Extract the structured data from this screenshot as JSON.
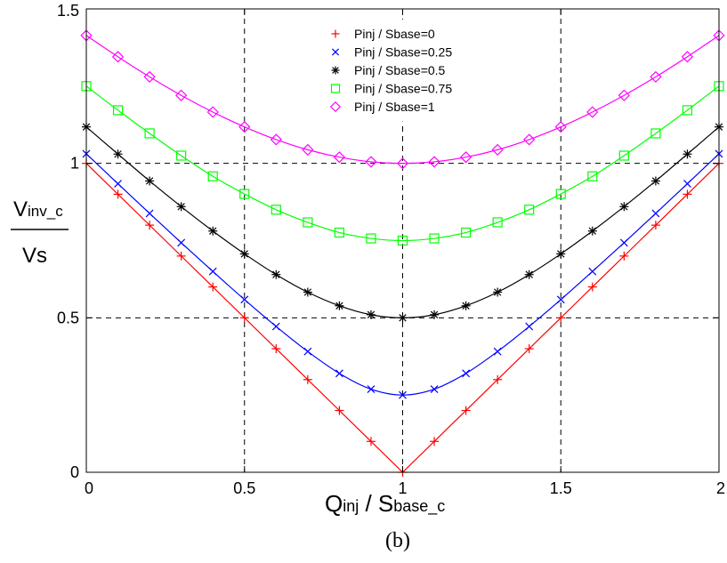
{
  "chart_data": {
    "type": "line",
    "xlabel": {
      "main": "Q",
      "main_sub": "inj",
      "sep": " / ",
      "denom": "S",
      "denom_sub": "base_c"
    },
    "ylabel": {
      "numerator_main": "V",
      "numerator_sub": "inv_c",
      "denominator": "Vs"
    },
    "caption": "(b)",
    "xlim": [
      0,
      2
    ],
    "ylim": [
      0,
      1.5
    ],
    "x_ticks": [
      "0",
      "0.5",
      "1",
      "1.5",
      "2"
    ],
    "y_ticks": [
      "0",
      "0.5",
      "1",
      "1.5"
    ],
    "grid": true,
    "legend_position": "top-center",
    "marker_x": [
      0,
      0.1,
      0.2,
      0.3,
      0.4,
      0.5,
      0.6,
      0.7,
      0.8,
      0.9,
      1.0,
      1.1,
      1.2,
      1.3,
      1.4,
      1.5,
      1.6,
      1.7,
      1.8,
      1.9,
      2.0
    ],
    "series": [
      {
        "name": "Pinj / Sbase=0",
        "color": "#ff0000",
        "marker": "plus",
        "values": [
          1.0,
          0.9,
          0.8,
          0.7,
          0.6,
          0.5,
          0.4,
          0.3,
          0.2,
          0.1,
          0.0,
          0.1,
          0.2,
          0.3,
          0.4,
          0.5,
          0.6,
          0.7,
          0.8,
          0.9,
          1.0
        ]
      },
      {
        "name": "Pinj / Sbase=0.25",
        "color": "#0000ff",
        "marker": "x",
        "values": [
          1.031,
          0.934,
          0.838,
          0.743,
          0.65,
          0.559,
          0.472,
          0.391,
          0.32,
          0.269,
          0.25,
          0.269,
          0.32,
          0.391,
          0.472,
          0.559,
          0.65,
          0.743,
          0.838,
          0.934,
          1.031
        ]
      },
      {
        "name": "Pinj / Sbase=0.5",
        "color": "#000000",
        "marker": "star",
        "values": [
          1.118,
          1.03,
          0.943,
          0.86,
          0.781,
          0.707,
          0.64,
          0.583,
          0.539,
          0.51,
          0.5,
          0.51,
          0.539,
          0.583,
          0.64,
          0.707,
          0.781,
          0.86,
          0.943,
          1.03,
          1.118
        ]
      },
      {
        "name": "Pinj / Sbase=0.75",
        "color": "#00ff00",
        "marker": "square",
        "values": [
          1.25,
          1.172,
          1.097,
          1.025,
          0.958,
          0.901,
          0.85,
          0.809,
          0.776,
          0.757,
          0.75,
          0.757,
          0.776,
          0.809,
          0.85,
          0.901,
          0.958,
          1.025,
          1.097,
          1.172,
          1.25
        ]
      },
      {
        "name": "Pinj / Sbase=1",
        "color": "#ff00ff",
        "marker": "diamond",
        "values": [
          1.414,
          1.345,
          1.28,
          1.22,
          1.166,
          1.118,
          1.077,
          1.044,
          1.02,
          1.005,
          1.0,
          1.005,
          1.02,
          1.044,
          1.077,
          1.118,
          1.166,
          1.22,
          1.28,
          1.345,
          1.414
        ]
      }
    ]
  }
}
